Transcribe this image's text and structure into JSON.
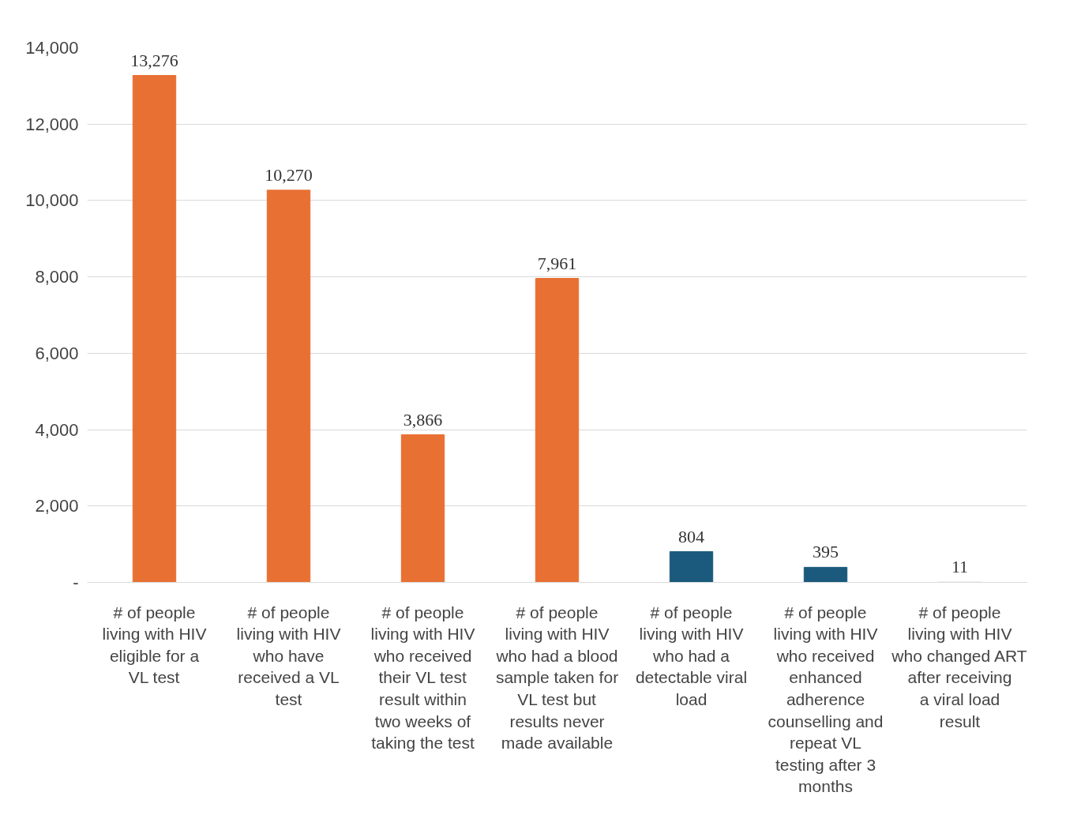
{
  "chart_data": {
    "type": "bar",
    "categories": [
      "# of people living with HIV eligible for a VL test",
      "# of people living with HIV who have received a VL test",
      "# of people living with HIV who received their VL test result within two weeks of taking the test",
      "# of people living with HIV who had a blood sample taken for VL test but results never made available",
      "# of people living with HIV who had a detectable viral load",
      "# of people living with HIV who received enhanced adherence counselling and repeat VL testing after 3 months",
      "# of people living with HIV who changed ART after receiving a viral load result"
    ],
    "values": [
      13276,
      10270,
      3866,
      7961,
      804,
      395,
      11
    ],
    "colors": [
      "#e87033",
      "#e87033",
      "#e87033",
      "#e87033",
      "#1b5a7d",
      "#1b5a7d",
      "#e3e3e3"
    ],
    "value_labels": [
      "13,276",
      "10,270",
      "3,866",
      "7,961",
      "804",
      "395",
      "11"
    ],
    "ylim": [
      0,
      14000
    ],
    "yticks": [
      {
        "value": 0,
        "label": "-"
      },
      {
        "value": 2000,
        "label": "2,000"
      },
      {
        "value": 4000,
        "label": "4,000"
      },
      {
        "value": 6000,
        "label": "6,000"
      },
      {
        "value": 8000,
        "label": "8,000"
      },
      {
        "value": 10000,
        "label": "10,000"
      },
      {
        "value": 12000,
        "label": "12,000"
      },
      {
        "value": 14000,
        "label": "14,000"
      }
    ],
    "grid": "y"
  }
}
